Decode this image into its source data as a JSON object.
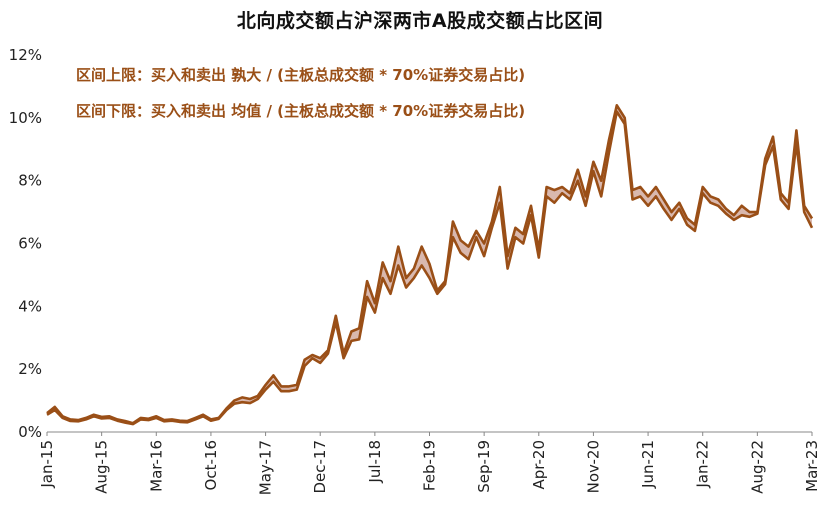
{
  "chart_data": {
    "type": "area",
    "title": "北向成交额占沪深两市A股成交额占比区间",
    "annotations": [
      "区间上限：买入和卖出 孰大 / (主板总成交额 * 70%证券交易占比)",
      "区间下限：买入和卖出 均值 / (主板总成交额 * 70%证券交易占比)"
    ],
    "ylim": [
      0,
      12
    ],
    "ytick_labels": [
      "0%",
      "2%",
      "4%",
      "6%",
      "8%",
      "10%",
      "12%"
    ],
    "ytick_values": [
      0,
      2,
      4,
      6,
      8,
      10,
      12
    ],
    "grid": false,
    "x_start_label": "Jan-15",
    "xtick_labels": [
      "Jan-15",
      "Aug-15",
      "Mar-16",
      "Oct-16",
      "May-17",
      "Dec-17",
      "Jul-18",
      "Feb-19",
      "Sep-19",
      "Apr-20",
      "Nov-20",
      "Jun-21",
      "Jan-22",
      "Aug-22",
      "Mar-23"
    ],
    "xtick_index": [
      0,
      7,
      14,
      21,
      28,
      35,
      42,
      49,
      56,
      63,
      70,
      77,
      84,
      91,
      98
    ],
    "series": [
      {
        "values": [
          0.6,
          0.8,
          0.5,
          0.4,
          0.38,
          0.45,
          0.55,
          0.48,
          0.5,
          0.4,
          0.35,
          0.28,
          0.45,
          0.42,
          0.5,
          0.38,
          0.4,
          0.36,
          0.35,
          0.45,
          0.55,
          0.4,
          0.45,
          0.75,
          1.0,
          1.1,
          1.05,
          1.15,
          1.5,
          1.8,
          1.45,
          1.45,
          1.5,
          2.3,
          2.45,
          2.35,
          2.6,
          3.7,
          2.5,
          3.2,
          3.3,
          4.8,
          4.1,
          5.4,
          4.8,
          5.9,
          4.9,
          5.2,
          5.9,
          5.35,
          4.5,
          4.8,
          6.7,
          6.1,
          5.9,
          6.4,
          6.0,
          6.7,
          7.8,
          5.6,
          6.5,
          6.3,
          7.2,
          5.8,
          7.8,
          7.7,
          7.8,
          7.6,
          8.35,
          7.5,
          8.6,
          8.0,
          9.3,
          10.4,
          10.0,
          7.7,
          7.8,
          7.5,
          7.8,
          7.4,
          7.0,
          7.3,
          6.8,
          6.6,
          7.8,
          7.5,
          7.4,
          7.1,
          6.9,
          7.2,
          7.0,
          7.0,
          8.7,
          9.4,
          7.6,
          7.3,
          9.6,
          7.2,
          6.8
        ],
        "color": "#9a4f17"
      },
      {
        "values": [
          0.55,
          0.7,
          0.45,
          0.35,
          0.34,
          0.4,
          0.5,
          0.43,
          0.45,
          0.36,
          0.3,
          0.25,
          0.4,
          0.38,
          0.45,
          0.34,
          0.36,
          0.32,
          0.31,
          0.4,
          0.5,
          0.36,
          0.42,
          0.7,
          0.9,
          0.95,
          0.92,
          1.05,
          1.35,
          1.6,
          1.3,
          1.3,
          1.35,
          2.1,
          2.35,
          2.2,
          2.5,
          3.5,
          2.35,
          2.9,
          2.95,
          4.3,
          3.8,
          4.9,
          4.4,
          5.3,
          4.6,
          4.9,
          5.3,
          4.9,
          4.4,
          4.7,
          6.2,
          5.7,
          5.5,
          6.2,
          5.6,
          6.5,
          7.3,
          5.2,
          6.2,
          6.0,
          6.9,
          5.55,
          7.5,
          7.3,
          7.6,
          7.4,
          8.0,
          7.2,
          8.3,
          7.5,
          8.9,
          10.2,
          9.8,
          7.4,
          7.5,
          7.2,
          7.5,
          7.1,
          6.75,
          7.1,
          6.6,
          6.4,
          7.6,
          7.3,
          7.2,
          6.95,
          6.75,
          6.9,
          6.85,
          6.95,
          8.5,
          9.1,
          7.4,
          7.1,
          9.2,
          7.0,
          6.5
        ],
        "color": "#9a4f17"
      }
    ],
    "band_fill": "#d9b8ae"
  }
}
